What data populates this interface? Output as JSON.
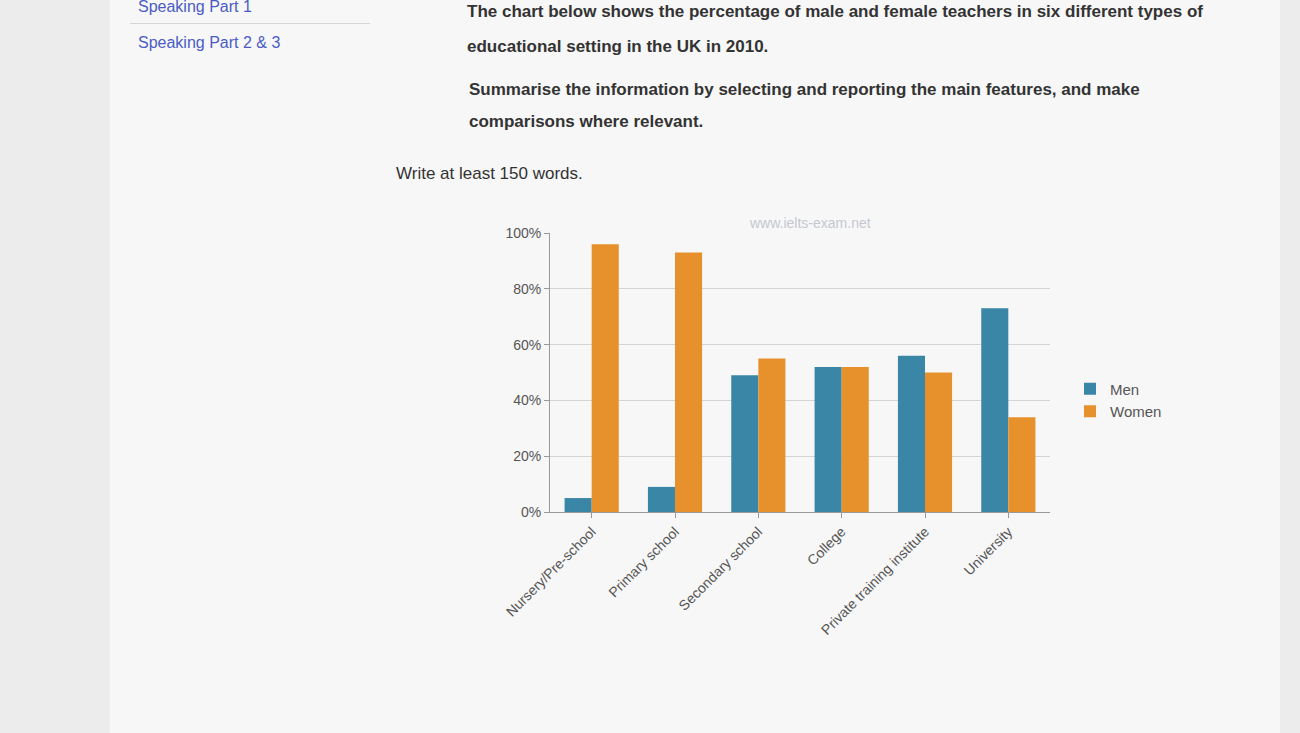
{
  "chart_data": {
    "type": "bar",
    "title": "The chart below shows the percentage of male and female teachers in six different types of educational setting in the UK in 2010.",
    "subtitle": "Summarise the information by selecting and reporting the main features, and make comparisons where relevant.",
    "annotations": [
      "www.ielts-exam.net"
    ],
    "categories": [
      "Nursery/Pre-school",
      "Primary school",
      "Secondary school",
      "College",
      "Private training institute",
      "University"
    ],
    "series": [
      {
        "name": "Men",
        "color": "#3a86a6",
        "values": [
          5,
          9,
          49,
          52,
          56,
          73
        ]
      },
      {
        "name": "Women",
        "color": "#e6912c",
        "values": [
          96,
          93,
          55,
          52,
          50,
          34
        ]
      }
    ],
    "ylim": [
      0,
      100
    ],
    "yticks": [
      {
        "value": 0,
        "label": "0%"
      },
      {
        "value": 20,
        "label": "20%"
      },
      {
        "value": 40,
        "label": "40%"
      },
      {
        "value": 60,
        "label": "60%"
      },
      {
        "value": 80,
        "label": "80%"
      },
      {
        "value": 100,
        "label": "100%"
      }
    ],
    "grid": true,
    "legend": "right"
  },
  "page": {
    "nav": [
      "Speaking Part 1",
      "Speaking Part 2 & 3"
    ],
    "note": "Write at least 150 words."
  }
}
